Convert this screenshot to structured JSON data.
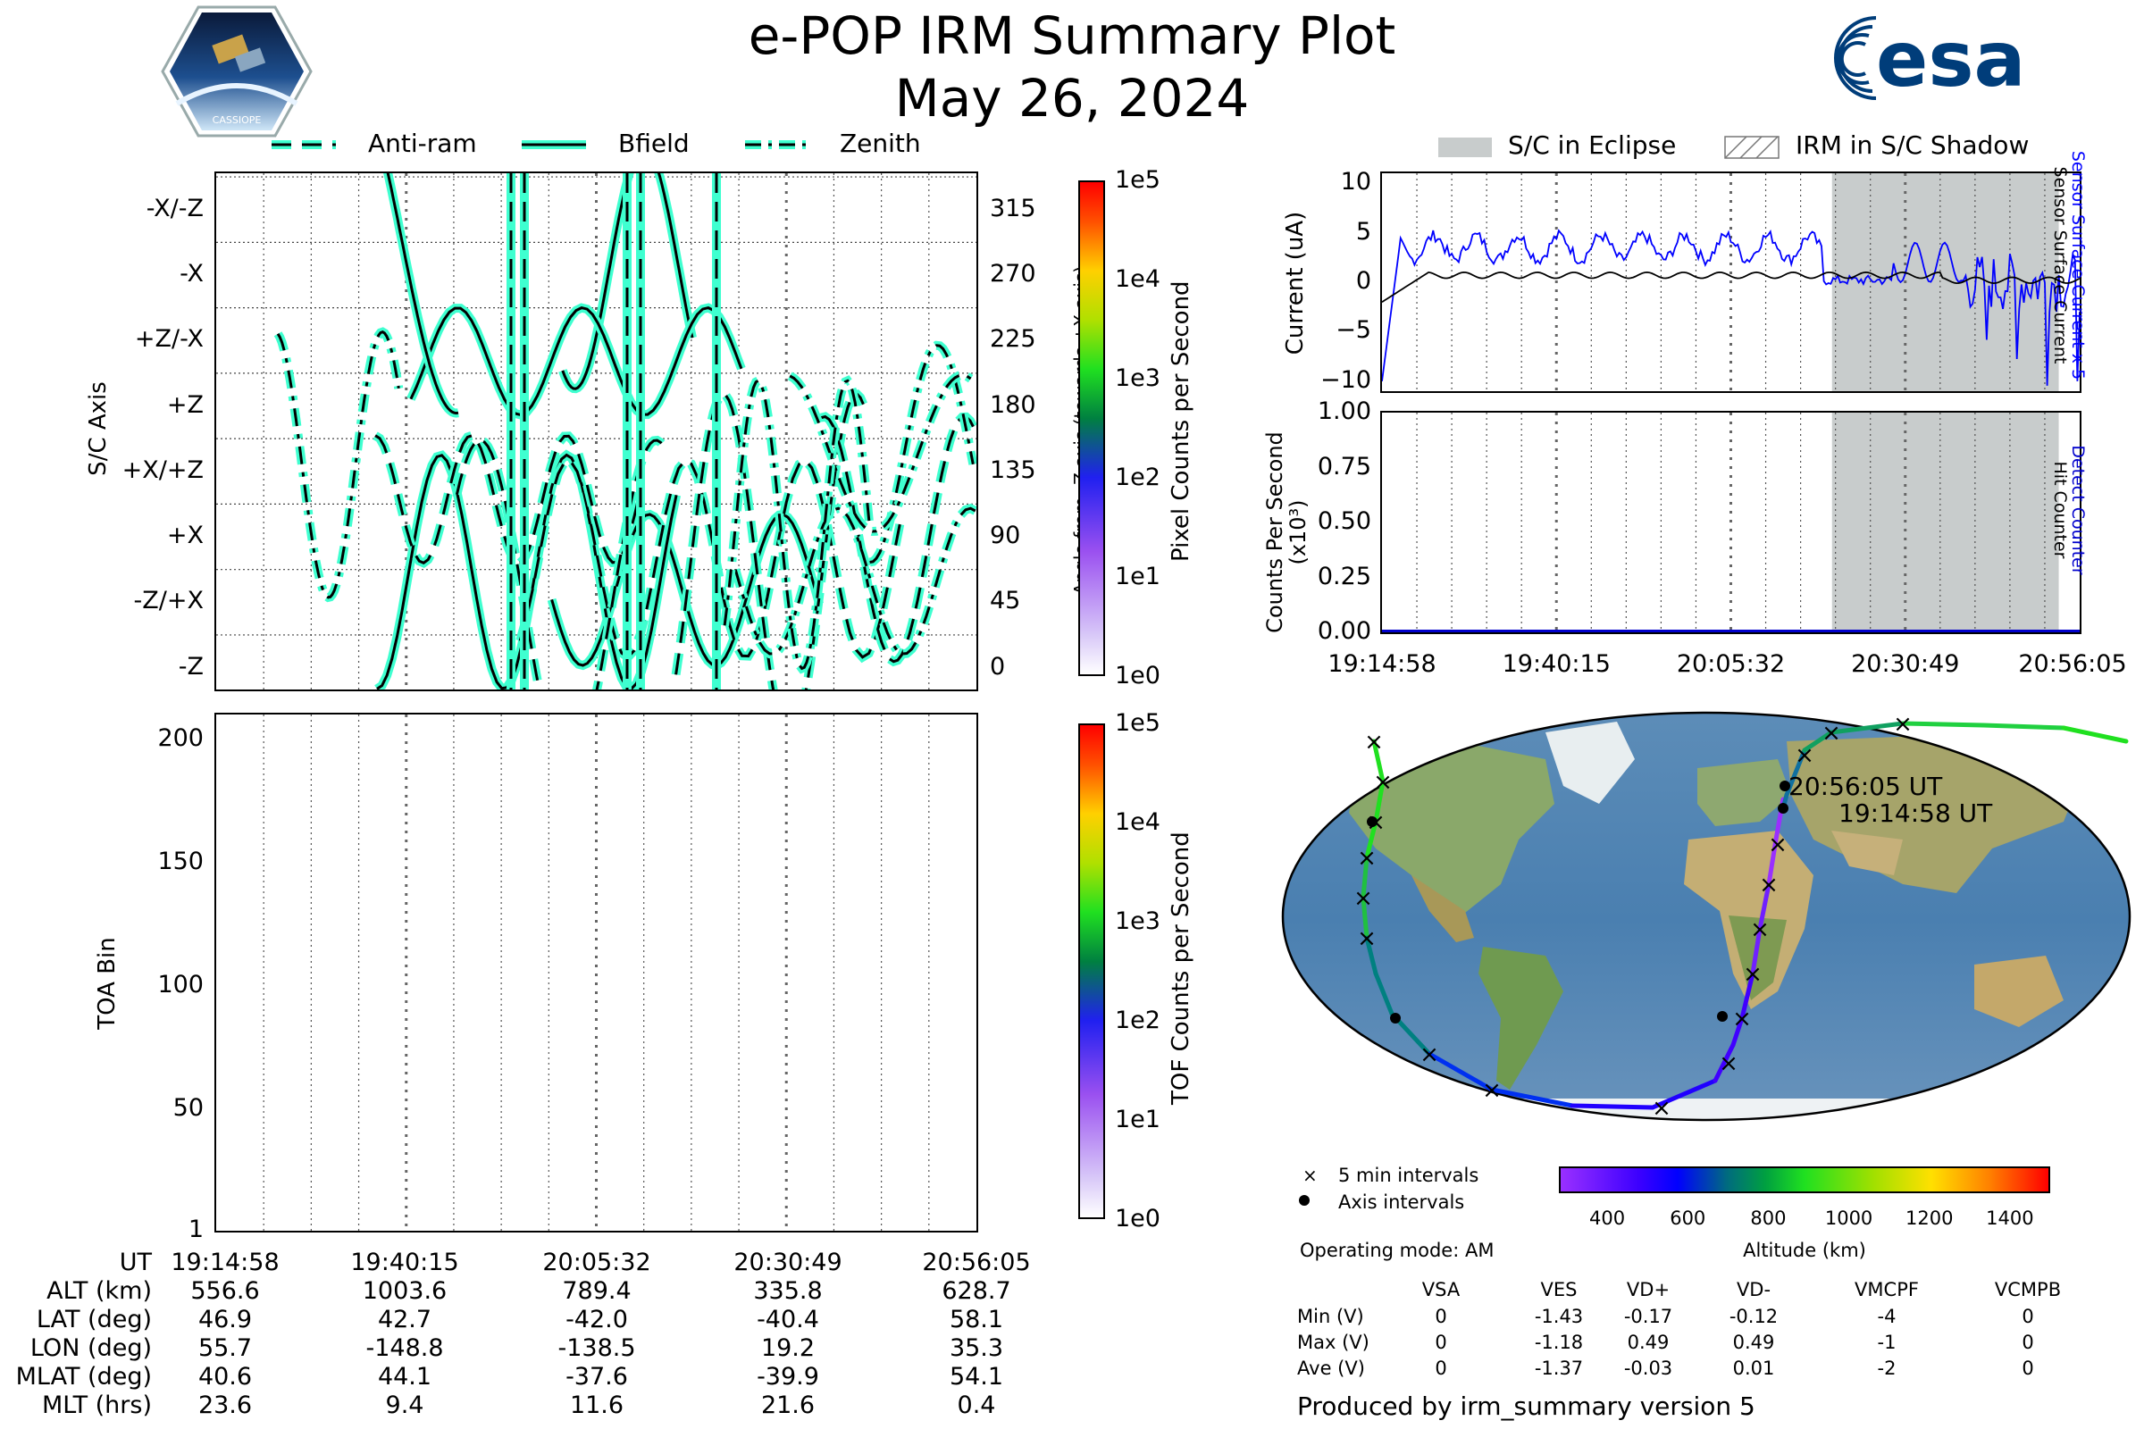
{
  "header": {
    "title": "e-POP IRM Summary Plot",
    "date": "May 26, 2024",
    "logo_left_text": "CASSIOPE",
    "logo_right_text": "esa"
  },
  "legend_top_left": {
    "items": [
      {
        "name": "Anti-ram",
        "style": "dashed"
      },
      {
        "name": "Bfield",
        "style": "solid"
      },
      {
        "name": "Zenith",
        "style": "dashdot"
      }
    ]
  },
  "legend_top_right": {
    "items": [
      {
        "name": "S/C in Eclipse",
        "style": "fill"
      },
      {
        "name": "IRM in S/C Shadow",
        "style": "hatch"
      }
    ]
  },
  "colors": {
    "line_outline": "#3fffd0",
    "line_core": "#000000",
    "eclipse": "#c8cccc",
    "sensor_current": "#0000ff",
    "detect_counter": "#0000cc"
  },
  "chart_data": [
    {
      "id": "axis-panel",
      "type": "line",
      "ylabel": "S/C Axis",
      "y2label": "Angle from -Z axis (towards +X axis)",
      "yticks_left": [
        "-X/-Z",
        "-X",
        "+Z/-X",
        "+Z",
        "+X/+Z",
        "+X",
        "-Z/+X",
        "-Z"
      ],
      "yticks_right": [
        "315",
        "270",
        "225",
        "180",
        "135",
        "90",
        "45",
        "0"
      ],
      "ylim": [
        -15,
        340
      ],
      "colorbar": {
        "label": "Pixel Counts per Second",
        "ticks": [
          "1e5",
          "1e4",
          "1e3",
          "1e2",
          "1e1",
          "1e0"
        ]
      }
    },
    {
      "id": "toa-panel",
      "type": "heatmap",
      "ylabel": "TOA Bin",
      "yticks": [
        "200",
        "150",
        "100",
        "50",
        "1"
      ],
      "ylim": [
        1,
        210
      ],
      "colorbar": {
        "label": "TOF Counts per Second",
        "ticks": [
          "1e5",
          "1e4",
          "1e3",
          "1e2",
          "1e1",
          "1e0"
        ]
      }
    },
    {
      "id": "current-panel",
      "type": "line",
      "ylabel": "Current (uA)",
      "y2label_1": "Sensor Surface Current x 5",
      "y2label_2": "Sensor Surface Current",
      "yticks": [
        "10",
        "5",
        "0",
        "−5",
        "−10"
      ],
      "ylim": [
        -11,
        11
      ],
      "eclipse_start_fraction": 0.645,
      "eclipse_end_fraction": 0.97
    },
    {
      "id": "counts-panel",
      "type": "line",
      "ylabel": "Counts Per Second (x10³)",
      "y2label_1": "Detect Counter",
      "y2label_2": "Hit Counter",
      "yticks": [
        "1.00",
        "0.75",
        "0.50",
        "0.25",
        "0.00"
      ],
      "ylim": [
        0,
        1
      ],
      "xticks": [
        "19:14:58",
        "19:40:15",
        "20:05:32",
        "20:30:49",
        "20:56:05"
      ],
      "values": [
        0,
        0,
        0,
        0,
        0
      ]
    },
    {
      "id": "orbit-map",
      "type": "scatter",
      "label_start": "19:14:58 UT",
      "label_end": "20:56:05 UT",
      "legend": [
        "5 min intervals",
        "Axis intervals"
      ],
      "colorbar": {
        "label": "Altitude (km)",
        "ticks": [
          "400",
          "600",
          "800",
          "1000",
          "1200",
          "1400"
        ],
        "range": [
          280,
          1500
        ]
      }
    }
  ],
  "ephemeris": {
    "row_labels": [
      "UT",
      "ALT (km)",
      "LAT (deg)",
      "LON (deg)",
      "MLAT (deg)",
      "MLT (hrs)"
    ],
    "columns": [
      [
        "19:14:58",
        "556.6",
        "46.9",
        "55.7",
        "40.6",
        "23.6"
      ],
      [
        "19:40:15",
        "1003.6",
        "42.7",
        "-148.8",
        "44.1",
        "9.4"
      ],
      [
        "20:05:32",
        "789.4",
        "-42.0",
        "-138.5",
        "-37.6",
        "11.6"
      ],
      [
        "20:30:49",
        "335.8",
        "-40.4",
        "19.2",
        "-39.9",
        "21.6"
      ],
      [
        "20:56:05",
        "628.7",
        "58.1",
        "35.3",
        "54.1",
        "0.4"
      ]
    ]
  },
  "voltages": {
    "operating_mode": "Operating mode: AM",
    "headers": [
      "VSA",
      "VES",
      "VD+",
      "VD-",
      "VMCPF",
      "VCMPB"
    ],
    "rows": [
      {
        "label": "Min (V)",
        "values": [
          "0",
          "-1.43",
          "-0.17",
          "-0.12",
          "-4",
          "0"
        ]
      },
      {
        "label": "Max (V)",
        "values": [
          "0",
          "-1.18",
          "0.49",
          "0.49",
          "-1",
          "0"
        ]
      },
      {
        "label": "Ave (V)",
        "values": [
          "0",
          "-1.37",
          "-0.03",
          "0.01",
          "-2",
          "0"
        ]
      }
    ]
  },
  "footer": "Produced by irm_summary version 5"
}
